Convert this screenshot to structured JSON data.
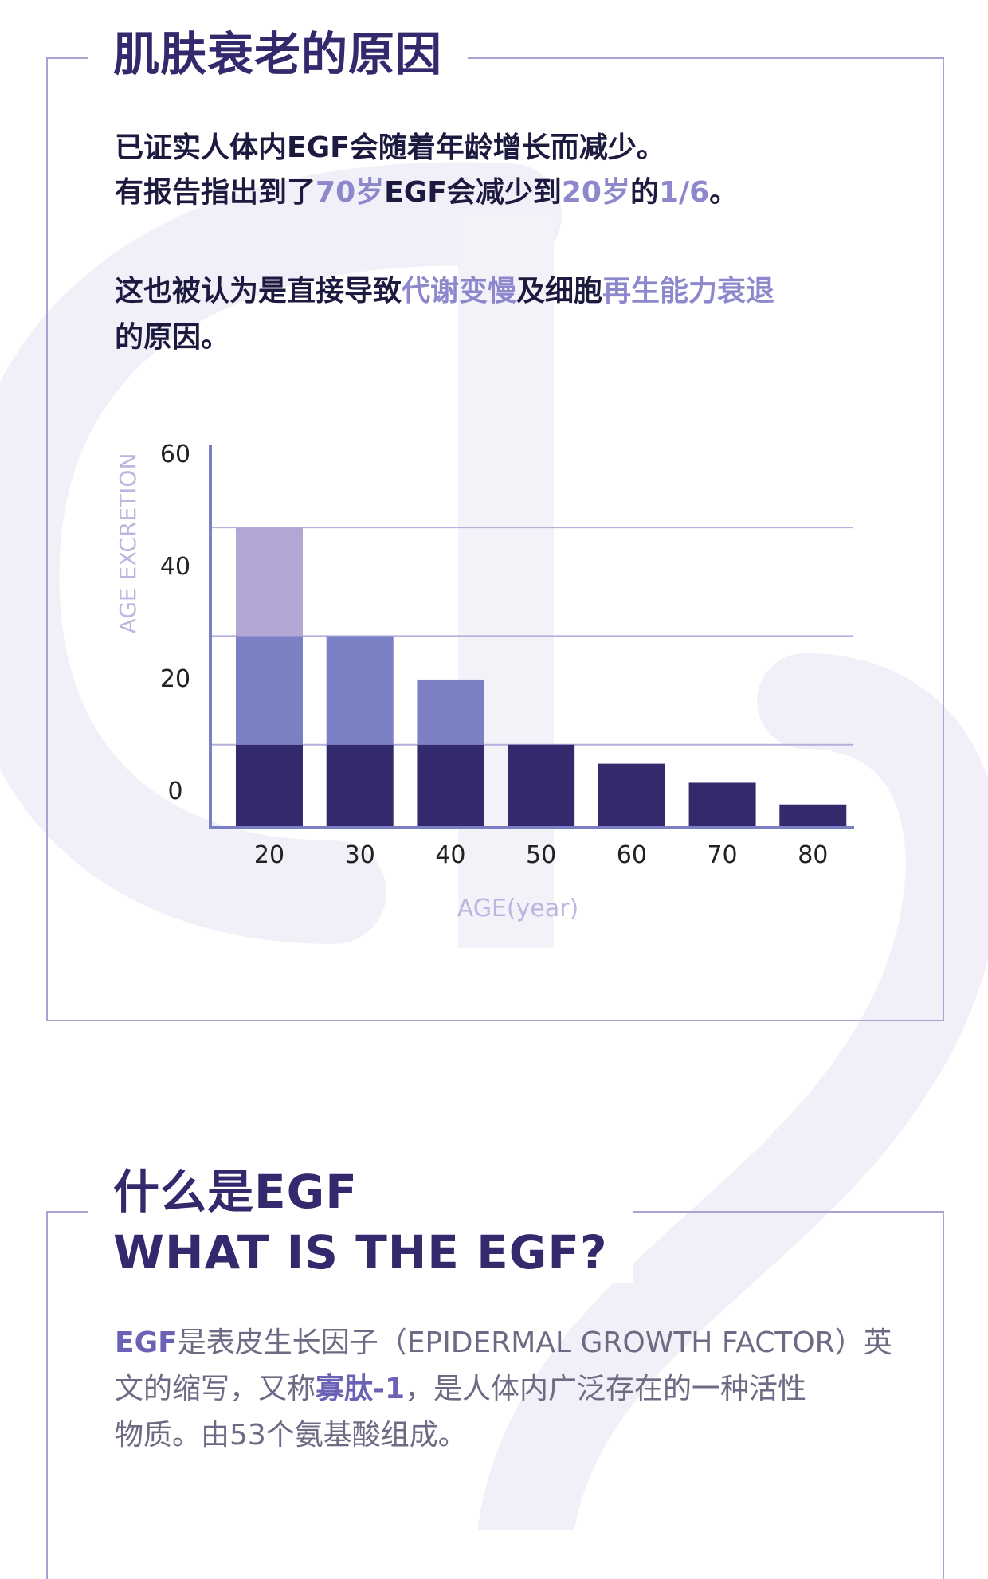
{
  "section1": {
    "title": "肌肤衰老的原因",
    "line1": "已证实人体内EGF会随着年龄增长而减少。",
    "line2": {
      "p1": "有报告指出到了",
      "h1": "70岁",
      "p2": "EGF会减少到",
      "h2": "20岁",
      "p3": "的",
      "h3": "1/6",
      "p4": "。"
    },
    "line3": {
      "p1": "这也被认为是直接导致",
      "h1": "代谢变慢",
      "p2": "及细胞",
      "h2": "再生能力衰退"
    },
    "line4": "的原因。"
  },
  "chart_data": {
    "type": "bar",
    "xlabel": "AGE(year)",
    "ylabel": "AGE  EXCRETION",
    "categories": [
      "20",
      "30",
      "40",
      "50",
      "60",
      "70",
      "80"
    ],
    "y_ticks": [
      "0",
      "20",
      "40",
      "60"
    ],
    "series": [
      {
        "values": [
          15,
          15,
          15,
          15,
          11.5,
          8,
          4
        ]
      },
      {
        "values": [
          20,
          20,
          12,
          0,
          0,
          0,
          0
        ]
      },
      {
        "values": [
          20,
          0,
          0,
          0,
          0,
          0,
          0
        ]
      }
    ],
    "totals": [
      55,
      35,
      27,
      15,
      11.5,
      8,
      4
    ],
    "ylim": [
      0,
      60
    ],
    "colors": [
      "#332a6d",
      "#7b7fc3",
      "#b2a7d4"
    ],
    "grid": true
  },
  "section2": {
    "title_cn": "什么是EGF",
    "title_en": "WHAT IS THE EGF?",
    "line1": {
      "h1": "EGF",
      "p1": "是表皮生长因子（EPIDERMAL GROWTH FACTOR）英"
    },
    "line2": {
      "p1": "文的缩写，又称",
      "h1": "寡肽-1",
      "p2": "，是人体内广泛存在的一种活性"
    },
    "line3": "物质。由53个氨基酸组成。"
  },
  "colors": {
    "dark": "#332a6d",
    "highlight": "#8d88cc",
    "border": "#a7a4d4"
  }
}
